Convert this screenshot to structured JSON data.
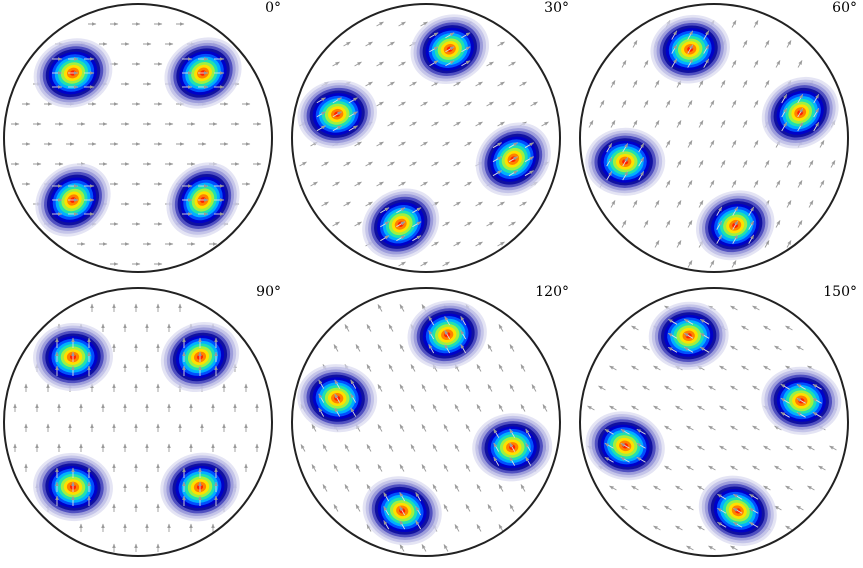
{
  "figure": {
    "panels": [
      {
        "label": "0°",
        "rotation_deg": 0
      },
      {
        "label": "30°",
        "rotation_deg": 30
      },
      {
        "label": "60°",
        "rotation_deg": 60
      },
      {
        "label": "90°",
        "rotation_deg": 90
      },
      {
        "label": "120°",
        "rotation_deg": 120
      },
      {
        "label": "150°",
        "rotation_deg": 150
      }
    ],
    "colors": {
      "circle": "#222222",
      "arrow": "#9a9a9a",
      "colormap": [
        "#d8d8f0",
        "#b8b8e4",
        "#8c8cd4",
        "#5050c0",
        "#1010a0",
        "#0000c8",
        "#0050ff",
        "#00b0ff",
        "#20e0b0",
        "#a0f040",
        "#ffe000",
        "#ff8000",
        "#ff2000"
      ]
    }
  }
}
